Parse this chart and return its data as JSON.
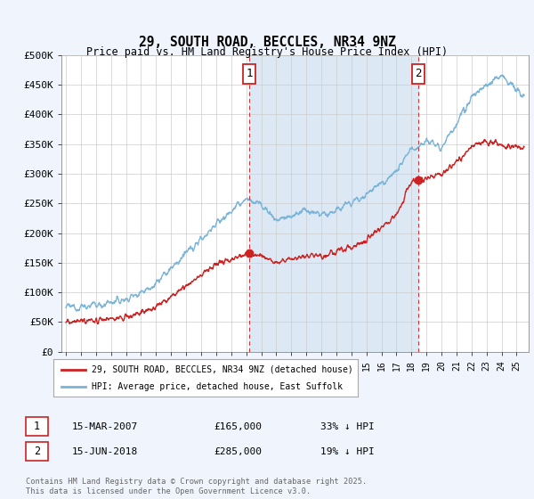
{
  "title": "29, SOUTH ROAD, BECCLES, NR34 9NZ",
  "subtitle": "Price paid vs. HM Land Registry's House Price Index (HPI)",
  "ylim": [
    0,
    500000
  ],
  "yticks": [
    0,
    50000,
    100000,
    150000,
    200000,
    250000,
    300000,
    350000,
    400000,
    450000,
    500000
  ],
  "ytick_labels": [
    "£0",
    "£50K",
    "£100K",
    "£150K",
    "£200K",
    "£250K",
    "£300K",
    "£350K",
    "£400K",
    "£450K",
    "£500K"
  ],
  "hpi_color": "#7ab4d8",
  "price_color": "#cc2222",
  "marker1_year": 2007.21,
  "marker2_year": 2018.45,
  "marker1_price": 165000,
  "marker2_price": 285000,
  "legend_label1": "29, SOUTH ROAD, BECCLES, NR34 9NZ (detached house)",
  "legend_label2": "HPI: Average price, detached house, East Suffolk",
  "annotation1_date": "15-MAR-2007",
  "annotation1_price": "£165,000",
  "annotation1_hpi": "33% ↓ HPI",
  "annotation2_date": "15-JUN-2018",
  "annotation2_price": "£285,000",
  "annotation2_hpi": "19% ↓ HPI",
  "footer": "Contains HM Land Registry data © Crown copyright and database right 2025.\nThis data is licensed under the Open Government Licence v3.0.",
  "background_color": "#f0f4fc",
  "plot_bg": "#ffffff",
  "shade_color": "#dde8f5",
  "grid_color": "#cccccc"
}
